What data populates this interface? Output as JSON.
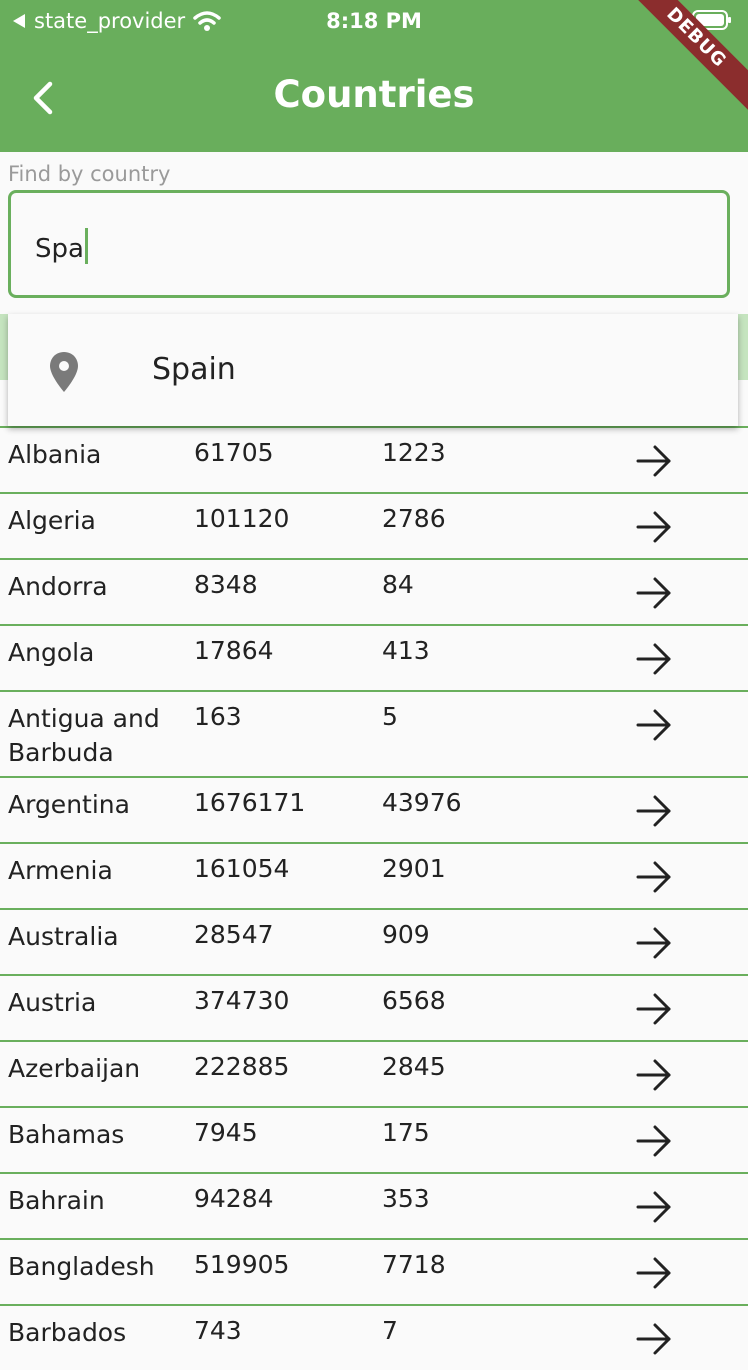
{
  "status_bar": {
    "carrier": "state_provider",
    "time": "8:18 PM"
  },
  "app_bar": {
    "title": "Countries",
    "debug_banner": "DEBUG"
  },
  "search": {
    "label": "Find by country",
    "value": "Spa"
  },
  "suggestions": [
    {
      "label": "Spain",
      "icon": "location-pin-icon"
    }
  ],
  "rows": [
    {
      "country": "Albania",
      "cases": "61705",
      "deaths": "1223"
    },
    {
      "country": "Algeria",
      "cases": "101120",
      "deaths": "2786"
    },
    {
      "country": "Andorra",
      "cases": "8348",
      "deaths": "84"
    },
    {
      "country": "Angola",
      "cases": "17864",
      "deaths": "413"
    },
    {
      "country": "Antigua and Barbuda",
      "cases": "163",
      "deaths": "5"
    },
    {
      "country": "Argentina",
      "cases": "1676171",
      "deaths": "43976"
    },
    {
      "country": "Armenia",
      "cases": "161054",
      "deaths": "2901"
    },
    {
      "country": "Australia",
      "cases": "28547",
      "deaths": "909"
    },
    {
      "country": "Austria",
      "cases": "374730",
      "deaths": "6568"
    },
    {
      "country": "Azerbaijan",
      "cases": "222885",
      "deaths": "2845"
    },
    {
      "country": "Bahamas",
      "cases": "7945",
      "deaths": "175"
    },
    {
      "country": "Bahrain",
      "cases": "94284",
      "deaths": "353"
    },
    {
      "country": "Bangladesh",
      "cases": "519905",
      "deaths": "7718"
    },
    {
      "country": "Barbados",
      "cases": "743",
      "deaths": "7"
    }
  ],
  "colors": {
    "primary": "#69ae5c",
    "divider": "#6aaf5d",
    "ribbon": "#8b2d2d"
  }
}
